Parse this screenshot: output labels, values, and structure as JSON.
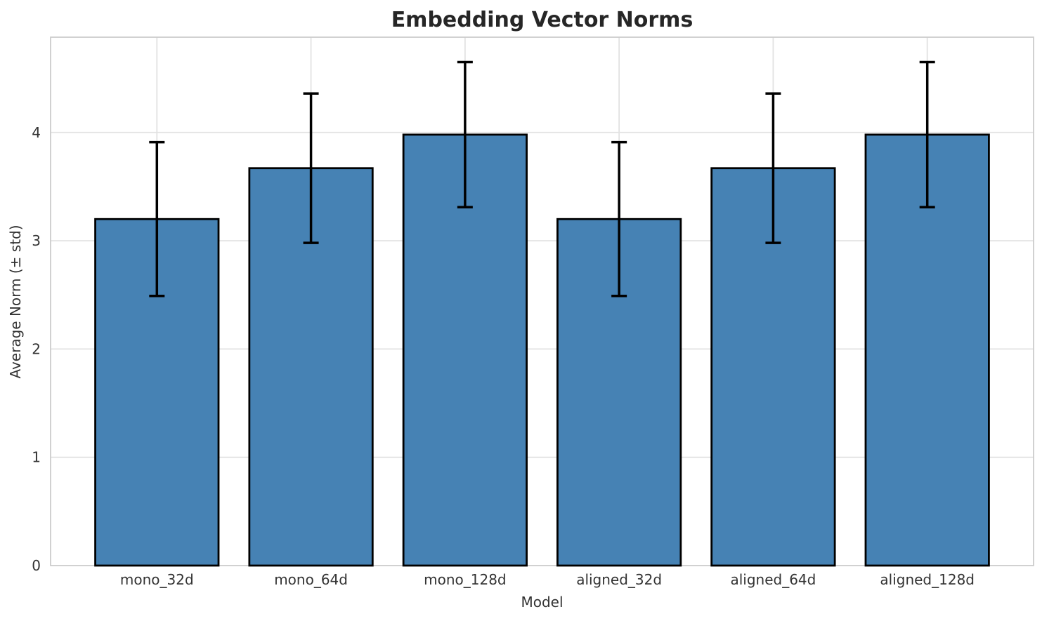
{
  "chart_data": {
    "type": "bar",
    "title": "Embedding Vector Norms",
    "xlabel": "Model",
    "ylabel": "Average Norm (± std)",
    "categories": [
      "mono_32d",
      "mono_64d",
      "mono_128d",
      "aligned_32d",
      "aligned_64d",
      "aligned_128d"
    ],
    "series": [
      {
        "name": "Average Norm",
        "values": [
          3.2,
          3.67,
          3.98,
          3.2,
          3.67,
          3.98
        ],
        "errors": [
          0.71,
          0.69,
          0.67,
          0.71,
          0.69,
          0.67
        ]
      }
    ],
    "yticks": [
      0,
      1,
      2,
      3,
      4
    ],
    "ylim": [
      0,
      4.88
    ],
    "xlim": [
      -0.69,
      5.69
    ],
    "bar_width": 0.8,
    "grid": true,
    "legend": false,
    "colors": {
      "bar_fill": "#4682b4",
      "bar_edge": "#000000",
      "error_bar": "#000000",
      "gridline": "#e2e2e2",
      "spine": "#cccccc",
      "title_text": "#262626",
      "axis_text": "#333333"
    }
  }
}
